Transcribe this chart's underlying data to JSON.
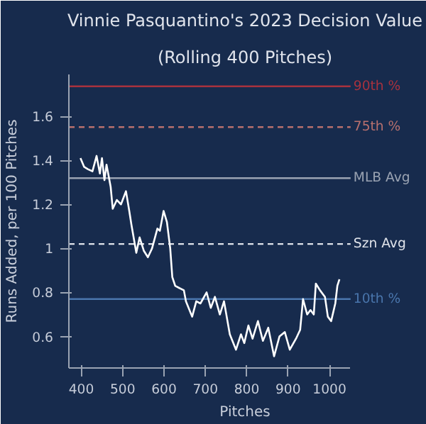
{
  "chart_data": {
    "type": "line",
    "title": "Vinnie Pasquantino's 2023 Decision Value",
    "subtitle": "(Rolling 400 Pitches)",
    "xlabel": "Pitches",
    "ylabel": "Runs Added, per 100 Pitches",
    "x": [
      398,
      407,
      416,
      427,
      437,
      445,
      450,
      456,
      461,
      471,
      476,
      486,
      496,
      508,
      516,
      521,
      533,
      541,
      551,
      561,
      571,
      584,
      590,
      599,
      607,
      615,
      620,
      627,
      637,
      648,
      653,
      668,
      678,
      688,
      703,
      713,
      723,
      735,
      745,
      759,
      774,
      786,
      794,
      804,
      814,
      827,
      839,
      852,
      866,
      879,
      892,
      904,
      919,
      929,
      936,
      946,
      954,
      962,
      967,
      977,
      989,
      996,
      1004,
      1014,
      1019,
      1024
    ],
    "series": [
      {
        "color": "#ffffff",
        "values": [
          1.41,
          1.37,
          1.36,
          1.35,
          1.42,
          1.34,
          1.41,
          1.31,
          1.38,
          1.28,
          1.18,
          1.22,
          1.2,
          1.26,
          1.17,
          1.11,
          0.98,
          1.05,
          0.99,
          0.96,
          1.0,
          1.09,
          1.08,
          1.17,
          1.12,
          1.0,
          0.87,
          0.83,
          0.82,
          0.81,
          0.76,
          0.69,
          0.76,
          0.75,
          0.8,
          0.73,
          0.78,
          0.7,
          0.76,
          0.61,
          0.54,
          0.61,
          0.57,
          0.65,
          0.59,
          0.67,
          0.58,
          0.64,
          0.51,
          0.6,
          0.62,
          0.54,
          0.59,
          0.63,
          0.77,
          0.7,
          0.72,
          0.7,
          0.84,
          0.81,
          0.78,
          0.69,
          0.67,
          0.75,
          0.83,
          0.86
        ]
      }
    ],
    "xlim": [
      370,
      1051
    ],
    "ylim": [
      0.457,
      1.79
    ],
    "xticks": [
      400,
      500,
      600,
      700,
      800,
      900,
      1000
    ],
    "yticks": [
      0.6,
      0.8,
      1.0,
      1.2,
      1.4,
      1.6
    ],
    "ref_lines": [
      {
        "axis": "y",
        "value": 1.736,
        "label": "90th %",
        "color": "#a8323e",
        "line_style": "solid"
      },
      {
        "axis": "y",
        "value": 1.551,
        "label": "75th %",
        "color": "#b8706e",
        "line_style": "dashed"
      },
      {
        "axis": "y",
        "value": 1.319,
        "label": "MLB Avg",
        "color": "#9aa3b2",
        "line_style": "solid"
      },
      {
        "axis": "y",
        "value": 1.02,
        "label": "Szn Avg",
        "color": "#dfe3ea",
        "line_style": "dashed"
      },
      {
        "axis": "y",
        "value": 0.77,
        "label": "10th %",
        "color": "#4a76ad",
        "line_style": "solid"
      }
    ],
    "grid": false
  }
}
